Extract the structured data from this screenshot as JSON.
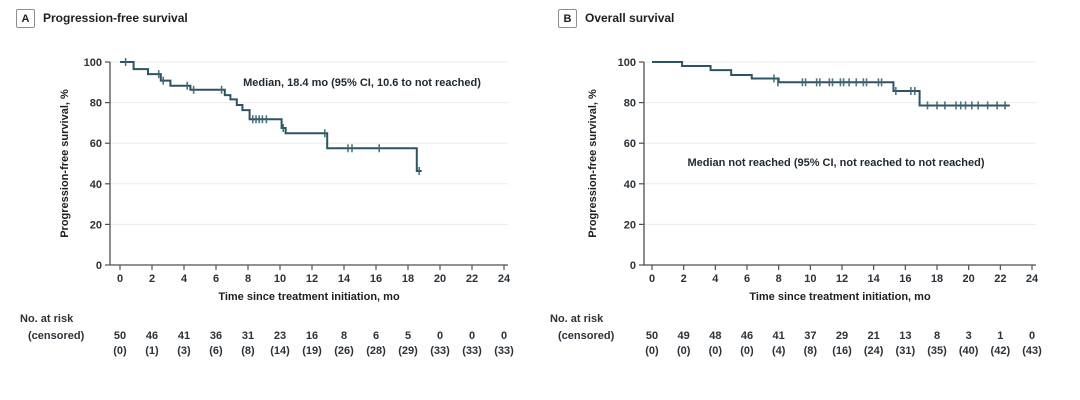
{
  "colors": {
    "curve": "#2d5464",
    "censor": "#3d6575",
    "grid": "#ebebeb",
    "axis": "#4f4f4f",
    "tick_text": "#2b3238",
    "title_text": "#1f1f1f",
    "annotation_text": "#222a31"
  },
  "chart_data": [
    {
      "type": "line",
      "subtype": "kaplan-meier-step",
      "panel_label": "A",
      "title": "Progression-free survival",
      "annotation": "Median, 18.4 mo (95% CI, 10.6 to not reached)",
      "xlabel": "Time since treatment initiation, mo",
      "ylabel": "Progression-free survival, %",
      "xlim": [
        0,
        24
      ],
      "ylim": [
        0,
        100
      ],
      "xticks": [
        0,
        2,
        4,
        6,
        8,
        10,
        12,
        14,
        16,
        18,
        20,
        22,
        24
      ],
      "yticks": [
        0,
        20,
        40,
        60,
        80,
        100
      ],
      "grid": "horizontal",
      "steps": [
        [
          0,
          100
        ],
        [
          0.85,
          96.5
        ],
        [
          1.75,
          94
        ],
        [
          2.55,
          90.8
        ],
        [
          3.15,
          88.3
        ],
        [
          4.4,
          86.3
        ],
        [
          6.55,
          83.7
        ],
        [
          6.9,
          81.6
        ],
        [
          7.3,
          78.8
        ],
        [
          7.65,
          76.3
        ],
        [
          8.1,
          71.8
        ],
        [
          10.1,
          67.5
        ],
        [
          10.35,
          64.9
        ],
        [
          12.95,
          57.5
        ],
        [
          18.55,
          46.3
        ]
      ],
      "end_time": 18.85,
      "censors": [
        [
          0.35,
          100
        ],
        [
          2.42,
          94
        ],
        [
          2.7,
          90.8
        ],
        [
          4.2,
          88.3
        ],
        [
          4.6,
          86.3
        ],
        [
          6.35,
          86.3
        ],
        [
          8.3,
          71.8
        ],
        [
          8.5,
          71.8
        ],
        [
          8.7,
          71.8
        ],
        [
          8.9,
          71.8
        ],
        [
          9.15,
          71.8
        ],
        [
          10.2,
          67.5
        ],
        [
          12.8,
          64.9
        ],
        [
          14.25,
          57.5
        ],
        [
          14.5,
          57.5
        ],
        [
          16.2,
          57.5
        ],
        [
          18.7,
          46.3
        ]
      ],
      "risk_table": {
        "label_line1": "No. at risk",
        "label_line2": "(censored)",
        "at_risk": [
          "50",
          "46",
          "41",
          "36",
          "31",
          "23",
          "16",
          "8",
          "6",
          "5",
          "0",
          "0",
          "0"
        ],
        "censored": [
          "(0)",
          "(1)",
          "(3)",
          "(6)",
          "(8)",
          "(14)",
          "(19)",
          "(26)",
          "(28)",
          "(29)",
          "(33)",
          "(33)",
          "(33)"
        ]
      }
    },
    {
      "type": "line",
      "subtype": "kaplan-meier-step",
      "panel_label": "B",
      "title": "Overall survival",
      "annotation": "Median not reached (95% CI, not reached to not reached)",
      "xlabel": "Time since treatment initiation, mo",
      "ylabel": "Progression-free survival, %",
      "xlim": [
        0,
        24
      ],
      "ylim": [
        0,
        100
      ],
      "xticks": [
        0,
        2,
        4,
        6,
        8,
        10,
        12,
        14,
        16,
        18,
        20,
        22,
        24
      ],
      "yticks": [
        0,
        20,
        40,
        60,
        80,
        100
      ],
      "grid": "horizontal",
      "steps": [
        [
          0,
          100
        ],
        [
          1.9,
          98
        ],
        [
          3.7,
          96
        ],
        [
          5.0,
          93.6
        ],
        [
          6.3,
          91.9
        ],
        [
          8.0,
          90
        ],
        [
          15.25,
          85.7
        ],
        [
          16.9,
          78.6
        ]
      ],
      "end_time": 22.6,
      "censors": [
        [
          7.7,
          91.9
        ],
        [
          7.95,
          90
        ],
        [
          9.5,
          90
        ],
        [
          9.7,
          90
        ],
        [
          10.4,
          90
        ],
        [
          10.6,
          90
        ],
        [
          11.2,
          90
        ],
        [
          11.4,
          90
        ],
        [
          11.9,
          90
        ],
        [
          12.1,
          90
        ],
        [
          12.45,
          90
        ],
        [
          12.9,
          90
        ],
        [
          13.35,
          90
        ],
        [
          13.55,
          90
        ],
        [
          14.3,
          90
        ],
        [
          14.5,
          90
        ],
        [
          15.4,
          85.7
        ],
        [
          16.35,
          85.7
        ],
        [
          16.6,
          85.7
        ],
        [
          17.4,
          78.6
        ],
        [
          18.0,
          78.6
        ],
        [
          18.5,
          78.6
        ],
        [
          19.2,
          78.6
        ],
        [
          19.5,
          78.6
        ],
        [
          19.8,
          78.6
        ],
        [
          20.2,
          78.6
        ],
        [
          20.6,
          78.6
        ],
        [
          21.2,
          78.6
        ],
        [
          21.8,
          78.6
        ],
        [
          22.3,
          78.6
        ]
      ],
      "risk_table": {
        "label_line1": "No. at risk",
        "label_line2": "(censored)",
        "at_risk": [
          "50",
          "49",
          "48",
          "46",
          "41",
          "37",
          "29",
          "21",
          "13",
          "8",
          "3",
          "1",
          "0"
        ],
        "censored": [
          "(0)",
          "(0)",
          "(0)",
          "(0)",
          "(4)",
          "(8)",
          "(16)",
          "(24)",
          "(31)",
          "(35)",
          "(40)",
          "(42)",
          "(43)"
        ]
      }
    }
  ]
}
